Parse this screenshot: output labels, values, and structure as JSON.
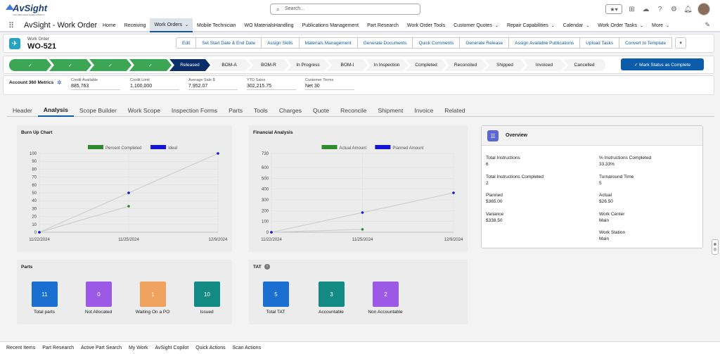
{
  "header": {
    "logo_name": "AvSight",
    "logo_tag": "Your Aftermarket Aviation Platform",
    "search_placeholder": "Search..."
  },
  "nav": {
    "app_name": "AvSight - Work Order",
    "items": [
      {
        "label": "Home",
        "chevron": false
      },
      {
        "label": "Receiving",
        "chevron": false
      },
      {
        "label": "Work Orders",
        "chevron": true,
        "active": true
      },
      {
        "label": "Mobile Technician",
        "chevron": false
      },
      {
        "label": "WO MaterialsHandling",
        "chevron": false
      },
      {
        "label": "Publications Management",
        "chevron": false
      },
      {
        "label": "Part Research",
        "chevron": false
      },
      {
        "label": "Work Order Tools",
        "chevron": false
      },
      {
        "label": "Customer Quotes",
        "chevron": true
      },
      {
        "label": "Repair Capabilities",
        "chevron": true
      },
      {
        "label": "Calendar",
        "chevron": true
      },
      {
        "label": "Work Order Tasks",
        "chevron": true
      },
      {
        "label": "More",
        "chevron": true
      }
    ]
  },
  "record": {
    "type": "Work Order",
    "name": "WO-521",
    "actions": [
      "Edit",
      "Set Start Date & End Date",
      "Assign Skills",
      "Materials Management",
      "Generate Documents",
      "Quick Comments",
      "Generate Release",
      "Assign Available Publications",
      "Upload Tasks",
      "Convert to Template"
    ]
  },
  "path": {
    "stages": [
      {
        "label": "✓",
        "state": "done"
      },
      {
        "label": "✓",
        "state": "done"
      },
      {
        "label": "✓",
        "state": "done"
      },
      {
        "label": "✓",
        "state": "done"
      },
      {
        "label": "Released",
        "state": "cur"
      },
      {
        "label": "BOM-A",
        "state": "todo"
      },
      {
        "label": "BOM-R",
        "state": "todo"
      },
      {
        "label": "In Progress",
        "state": "todo"
      },
      {
        "label": "BOM-I",
        "state": "todo"
      },
      {
        "label": "In Inspection",
        "state": "todo"
      },
      {
        "label": "Completed",
        "state": "todo"
      },
      {
        "label": "Reconciled",
        "state": "todo"
      },
      {
        "label": "Shipped",
        "state": "todo"
      },
      {
        "label": "Invoiced",
        "state": "todo"
      },
      {
        "label": "Cancelled",
        "state": "todo"
      }
    ],
    "mark_button": "✓ Mark Status as Complete"
  },
  "metrics": {
    "title": "Account 360 Metrics",
    "fields": [
      {
        "label": "Credit Available",
        "value": "885,763"
      },
      {
        "label": "Credit Limit",
        "value": "1,100,000"
      },
      {
        "label": "Average Sale $",
        "value": "7,952.07"
      },
      {
        "label": "YTD Sales",
        "value": "302,215.75"
      },
      {
        "label": "Customer Terms",
        "value": "Net 30"
      }
    ]
  },
  "tabs": [
    "Header",
    "Analysis",
    "Scope Builder",
    "Work Scope",
    "Inspection Forms",
    "Parts",
    "Tools",
    "Charges",
    "Quote",
    "Reconcile",
    "Shipment",
    "Invoice",
    "Related"
  ],
  "active_tab": "Analysis",
  "chart_data": [
    {
      "type": "line",
      "title": "Burn Up Chart",
      "x": [
        "11/22/2024",
        "11/25/2024",
        "12/9/2024"
      ],
      "series": [
        {
          "name": "Percent Completed",
          "values": [
            0,
            33,
            null
          ],
          "color": "#2e8b2e"
        },
        {
          "name": "Ideal",
          "values": [
            0,
            50,
            100
          ],
          "color": "#1515d4"
        }
      ],
      "ylim": [
        0,
        100
      ],
      "yticks": [
        0,
        10,
        20,
        30,
        40,
        50,
        60,
        70,
        80,
        90,
        100
      ],
      "legend": "top-center"
    },
    {
      "type": "line",
      "title": "Financial Analysis",
      "x": [
        "11/22/2024",
        "11/25/2024",
        "12/9/2024"
      ],
      "series": [
        {
          "name": "Actual Amount",
          "values": [
            0,
            26.5,
            null
          ],
          "color": "#2e8b2e"
        },
        {
          "name": "Planned Amount",
          "values": [
            0,
            182.5,
            365
          ],
          "color": "#1515d4"
        }
      ],
      "ylim": [
        0,
        730
      ],
      "yticks": [
        0,
        100,
        200,
        300,
        400,
        500,
        600,
        730
      ],
      "legend": "top-center"
    }
  ],
  "parts": {
    "title": "Parts",
    "tiles": [
      {
        "value": "11",
        "label": "Total parts",
        "color": "#1a6fd1"
      },
      {
        "value": "0",
        "label": "Not Allocated",
        "color": "#9b59e6"
      },
      {
        "value": "1",
        "label": "Waiting On a PO",
        "color": "#f0a35e"
      },
      {
        "value": "10",
        "label": "Issued",
        "color": "#138a84"
      }
    ]
  },
  "tat": {
    "title": "TAT",
    "tiles": [
      {
        "value": "5",
        "label": "Total TAT",
        "color": "#1a6fd1"
      },
      {
        "value": "3",
        "label": "Accountable",
        "color": "#138a84"
      },
      {
        "value": "2",
        "label": "Non Accountable",
        "color": "#9b59e6"
      }
    ]
  },
  "overview": {
    "title": "Overview",
    "fields": [
      {
        "label": "Total Instructions",
        "value": "6"
      },
      {
        "label": "% Instructions Completed",
        "value": "33.33%"
      },
      {
        "label": "Total Instructions Completed",
        "value": "2"
      },
      {
        "label": "Turnaround Time",
        "value": "5"
      },
      {
        "label": "Planned",
        "value": "$365.00"
      },
      {
        "label": "Actual",
        "value": "$26.50"
      },
      {
        "label": "Variance",
        "value": "$338.50"
      },
      {
        "label": "Work Center",
        "value": "Main"
      },
      {
        "label": "",
        "value": ""
      },
      {
        "label": "Work Station",
        "value": "Main"
      }
    ]
  },
  "utility": [
    "Recent Items",
    "Part Research",
    "Active Part Search",
    "My Work",
    "AvSight Copilot",
    "Quick Actions",
    "Scan Actions"
  ]
}
